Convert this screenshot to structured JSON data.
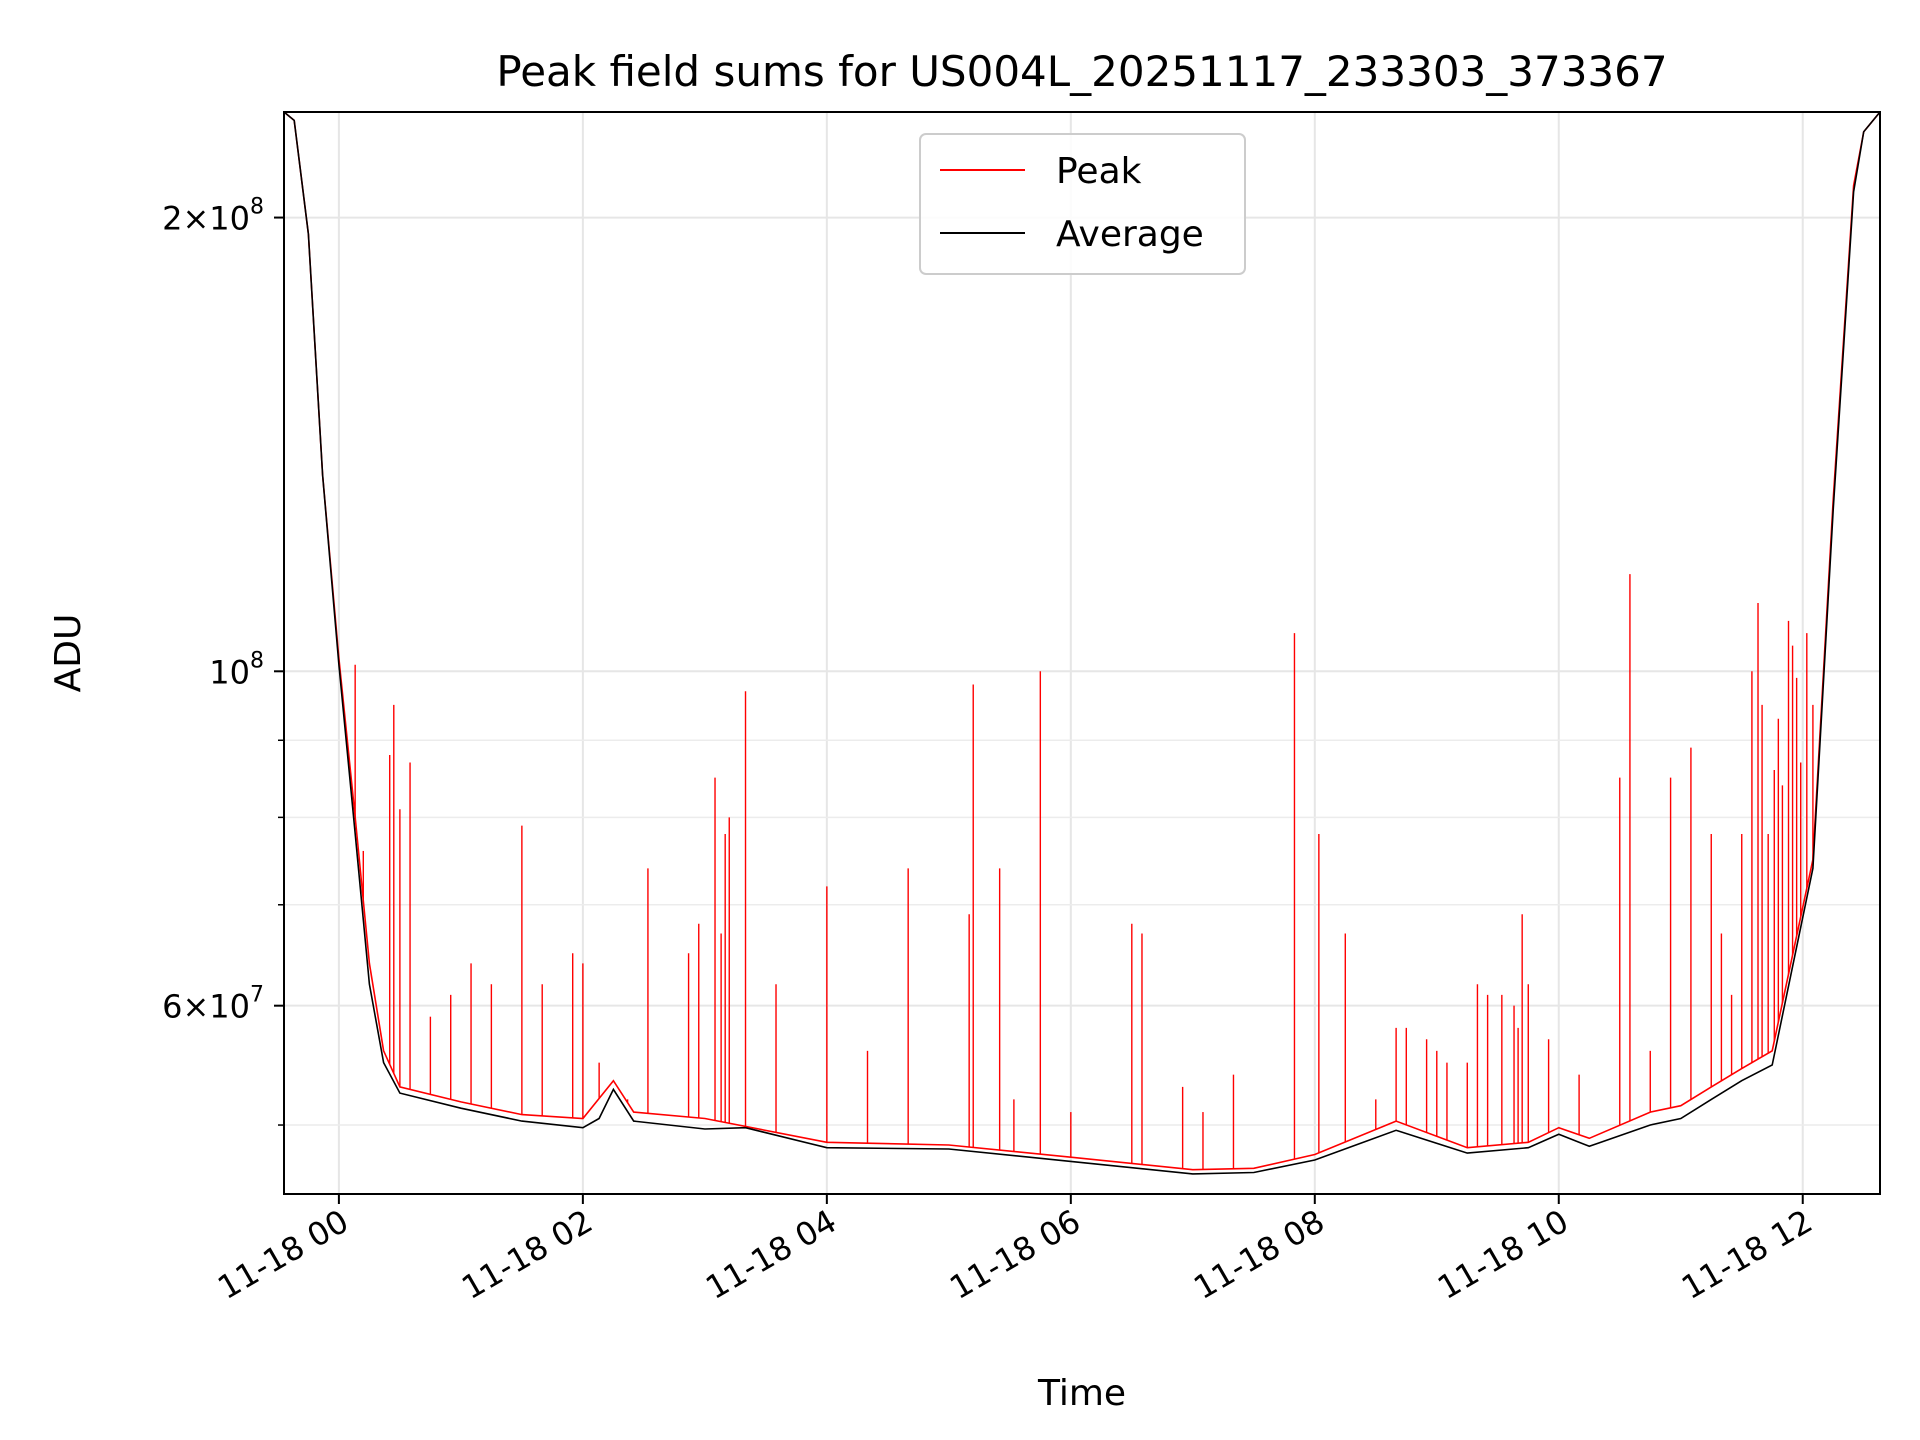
{
  "chart_data": {
    "type": "line",
    "title": "Peak field sums for US004L_20251117_233303_373367",
    "xlabel": "Time",
    "ylabel": "ADU",
    "y_scale": "log",
    "x_range": [
      "11-17 23:33",
      "11-18 12:38"
    ],
    "ylim": [
      45000000,
      235000000
    ],
    "x_ticks": [
      {
        "t": "11-18 00:00",
        "label": "11-18 00"
      },
      {
        "t": "11-18 02:00",
        "label": "11-18 02"
      },
      {
        "t": "11-18 04:00",
        "label": "11-18 04"
      },
      {
        "t": "11-18 06:00",
        "label": "11-18 06"
      },
      {
        "t": "11-18 08:00",
        "label": "11-18 08"
      },
      {
        "t": "11-18 10:00",
        "label": "11-18 10"
      },
      {
        "t": "11-18 12:00",
        "label": "11-18 12"
      }
    ],
    "y_major_ticks": [
      {
        "value": 60000000,
        "base": "6",
        "exp": "7"
      },
      {
        "value": 100000000,
        "base": "",
        "exp": "8"
      },
      {
        "value": 200000000,
        "base": "2",
        "exp": "8"
      }
    ],
    "y_minor_ticks": [
      50000000,
      70000000,
      80000000,
      90000000
    ],
    "grid": true,
    "legend": {
      "placement": "top-center"
    },
    "series": [
      {
        "name": "Peak",
        "color": "#ff0000",
        "baseline": [
          [
            "11-17 23:33",
            235000000
          ],
          [
            "11-17 23:38",
            232000000
          ],
          [
            "11-17 23:45",
            195000000
          ],
          [
            "11-17 23:52",
            135000000
          ],
          [
            "11-18 00:00",
            102000000
          ],
          [
            "11-18 00:08",
            80000000
          ],
          [
            "11-18 00:15",
            64000000
          ],
          [
            "11-18 00:22",
            56000000
          ],
          [
            "11-18 00:30",
            53000000
          ],
          [
            "11-18 01:00",
            51800000
          ],
          [
            "11-18 01:30",
            50800000
          ],
          [
            "11-18 02:00",
            50500000
          ],
          [
            "11-18 02:15",
            53500000
          ],
          [
            "11-18 02:25",
            51000000
          ],
          [
            "11-18 03:00",
            50500000
          ],
          [
            "11-18 04:00",
            48700000
          ],
          [
            "11-18 05:00",
            48500000
          ],
          [
            "11-18 06:00",
            47600000
          ],
          [
            "11-18 07:00",
            46700000
          ],
          [
            "11-18 07:30",
            46800000
          ],
          [
            "11-18 08:00",
            47800000
          ],
          [
            "11-18 08:40",
            50300000
          ],
          [
            "11-18 09:15",
            48300000
          ],
          [
            "11-18 09:45",
            48700000
          ],
          [
            "11-18 10:00",
            49800000
          ],
          [
            "11-18 10:15",
            49000000
          ],
          [
            "11-18 10:45",
            51000000
          ],
          [
            "11-18 11:00",
            51500000
          ],
          [
            "11-18 11:15",
            53000000
          ],
          [
            "11-18 11:30",
            54500000
          ],
          [
            "11-18 11:45",
            56000000
          ],
          [
            "11-18 12:05",
            75000000
          ],
          [
            "11-18 12:15",
            130000000
          ],
          [
            "11-18 12:25",
            210000000
          ],
          [
            "11-18 12:30",
            228000000
          ],
          [
            "11-18 12:38",
            235000000
          ]
        ],
        "spikes": [
          [
            "11-18 00:08",
            101000000
          ],
          [
            "11-18 00:12",
            76000000
          ],
          [
            "11-18 00:25",
            88000000
          ],
          [
            "11-18 00:27",
            95000000
          ],
          [
            "11-18 00:30",
            81000000
          ],
          [
            "11-18 00:35",
            87000000
          ],
          [
            "11-18 00:45",
            59000000
          ],
          [
            "11-18 00:55",
            61000000
          ],
          [
            "11-18 01:05",
            64000000
          ],
          [
            "11-18 01:15",
            62000000
          ],
          [
            "11-18 01:30",
            79000000
          ],
          [
            "11-18 01:40",
            62000000
          ],
          [
            "11-18 01:55",
            65000000
          ],
          [
            "11-18 02:00",
            64000000
          ],
          [
            "11-18 02:08",
            55000000
          ],
          [
            "11-18 02:22",
            52000000
          ],
          [
            "11-18 02:32",
            74000000
          ],
          [
            "11-18 02:52",
            65000000
          ],
          [
            "11-18 02:57",
            68000000
          ],
          [
            "11-18 03:05",
            85000000
          ],
          [
            "11-18 03:08",
            67000000
          ],
          [
            "11-18 03:10",
            78000000
          ],
          [
            "11-18 03:12",
            80000000
          ],
          [
            "11-18 03:20",
            97000000
          ],
          [
            "11-18 03:35",
            62000000
          ],
          [
            "11-18 04:00",
            72000000
          ],
          [
            "11-18 04:20",
            56000000
          ],
          [
            "11-18 04:40",
            74000000
          ],
          [
            "11-18 05:10",
            69000000
          ],
          [
            "11-18 05:12",
            98000000
          ],
          [
            "11-18 05:25",
            74000000
          ],
          [
            "11-18 05:32",
            52000000
          ],
          [
            "11-18 05:45",
            100000000
          ],
          [
            "11-18 06:00",
            51000000
          ],
          [
            "11-18 06:30",
            68000000
          ],
          [
            "11-18 06:35",
            67000000
          ],
          [
            "11-18 06:55",
            53000000
          ],
          [
            "11-18 07:05",
            51000000
          ],
          [
            "11-18 07:20",
            54000000
          ],
          [
            "11-18 07:50",
            106000000
          ],
          [
            "11-18 08:02",
            78000000
          ],
          [
            "11-18 08:15",
            67000000
          ],
          [
            "11-18 08:30",
            52000000
          ],
          [
            "11-18 08:40",
            58000000
          ],
          [
            "11-18 08:45",
            58000000
          ],
          [
            "11-18 08:55",
            57000000
          ],
          [
            "11-18 09:00",
            56000000
          ],
          [
            "11-18 09:05",
            55000000
          ],
          [
            "11-18 09:15",
            55000000
          ],
          [
            "11-18 09:20",
            62000000
          ],
          [
            "11-18 09:25",
            61000000
          ],
          [
            "11-18 09:32",
            61000000
          ],
          [
            "11-18 09:38",
            60000000
          ],
          [
            "11-18 09:40",
            58000000
          ],
          [
            "11-18 09:42",
            69000000
          ],
          [
            "11-18 09:45",
            62000000
          ],
          [
            "11-18 09:55",
            57000000
          ],
          [
            "11-18 10:10",
            54000000
          ],
          [
            "11-18 10:30",
            85000000
          ],
          [
            "11-18 10:35",
            116000000
          ],
          [
            "11-18 10:45",
            56000000
          ],
          [
            "11-18 10:55",
            85000000
          ],
          [
            "11-18 11:05",
            89000000
          ],
          [
            "11-18 11:15",
            78000000
          ],
          [
            "11-18 11:20",
            67000000
          ],
          [
            "11-18 11:25",
            61000000
          ],
          [
            "11-18 11:30",
            78000000
          ],
          [
            "11-18 11:35",
            100000000
          ],
          [
            "11-18 11:38",
            111000000
          ],
          [
            "11-18 11:40",
            95000000
          ],
          [
            "11-18 11:43",
            78000000
          ],
          [
            "11-18 11:46",
            86000000
          ],
          [
            "11-18 11:48",
            93000000
          ],
          [
            "11-18 11:50",
            84000000
          ],
          [
            "11-18 11:53",
            108000000
          ],
          [
            "11-18 11:55",
            104000000
          ],
          [
            "11-18 11:57",
            99000000
          ],
          [
            "11-18 11:59",
            87000000
          ],
          [
            "11-18 12:02",
            106000000
          ],
          [
            "11-18 12:05",
            95000000
          ]
        ]
      },
      {
        "name": "Average",
        "color": "#000000",
        "values": [
          [
            "11-17 23:33",
            235000000
          ],
          [
            "11-17 23:38",
            232000000
          ],
          [
            "11-17 23:45",
            195000000
          ],
          [
            "11-17 23:52",
            135000000
          ],
          [
            "11-18 00:00",
            101000000
          ],
          [
            "11-18 00:08",
            78000000
          ],
          [
            "11-18 00:15",
            62000000
          ],
          [
            "11-18 00:22",
            55000000
          ],
          [
            "11-18 00:30",
            52500000
          ],
          [
            "11-18 01:00",
            51300000
          ],
          [
            "11-18 01:30",
            50300000
          ],
          [
            "11-18 02:00",
            49800000
          ],
          [
            "11-18 02:08",
            50500000
          ],
          [
            "11-18 02:15",
            52800000
          ],
          [
            "11-18 02:25",
            50300000
          ],
          [
            "11-18 03:00",
            49700000
          ],
          [
            "11-18 03:20",
            49800000
          ],
          [
            "11-18 04:00",
            48300000
          ],
          [
            "11-18 05:00",
            48200000
          ],
          [
            "11-18 06:00",
            47300000
          ],
          [
            "11-18 07:00",
            46400000
          ],
          [
            "11-18 07:30",
            46500000
          ],
          [
            "11-18 08:00",
            47400000
          ],
          [
            "11-18 08:40",
            49600000
          ],
          [
            "11-18 09:15",
            47900000
          ],
          [
            "11-18 09:45",
            48300000
          ],
          [
            "11-18 10:00",
            49300000
          ],
          [
            "11-18 10:15",
            48400000
          ],
          [
            "11-18 10:45",
            50000000
          ],
          [
            "11-18 11:00",
            50500000
          ],
          [
            "11-18 11:15",
            52000000
          ],
          [
            "11-18 11:30",
            53500000
          ],
          [
            "11-18 11:45",
            54800000
          ],
          [
            "11-18 12:05",
            74000000
          ],
          [
            "11-18 12:15",
            128000000
          ],
          [
            "11-18 12:25",
            208000000
          ],
          [
            "11-18 12:30",
            228000000
          ],
          [
            "11-18 12:38",
            235000000
          ]
        ]
      }
    ]
  }
}
